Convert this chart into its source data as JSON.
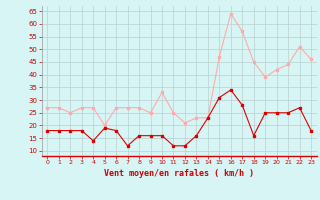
{
  "x": [
    0,
    1,
    2,
    3,
    4,
    5,
    6,
    7,
    8,
    9,
    10,
    11,
    12,
    13,
    14,
    15,
    16,
    17,
    18,
    19,
    20,
    21,
    22,
    23
  ],
  "wind_avg": [
    18,
    18,
    18,
    18,
    14,
    19,
    18,
    12,
    16,
    16,
    16,
    12,
    12,
    16,
    23,
    31,
    34,
    28,
    16,
    25,
    25,
    25,
    27,
    18
  ],
  "wind_gust": [
    27,
    27,
    25,
    27,
    27,
    20,
    27,
    27,
    27,
    25,
    33,
    25,
    21,
    23,
    23,
    47,
    64,
    57,
    45,
    39,
    42,
    44,
    51,
    46
  ],
  "avg_color": "#dd0000",
  "gust_color": "#ffaaaa",
  "bg_color": "#d8f5f5",
  "grid_color": "#b8d0d0",
  "xlabel": "Vent moyen/en rafales ( km/h )",
  "xlabel_color": "#cc0000",
  "tick_color": "#cc0000",
  "yticks": [
    10,
    15,
    20,
    25,
    30,
    35,
    40,
    45,
    50,
    55,
    60,
    65
  ],
  "ylim": [
    8,
    67
  ],
  "xlim": [
    -0.5,
    23.5
  ]
}
